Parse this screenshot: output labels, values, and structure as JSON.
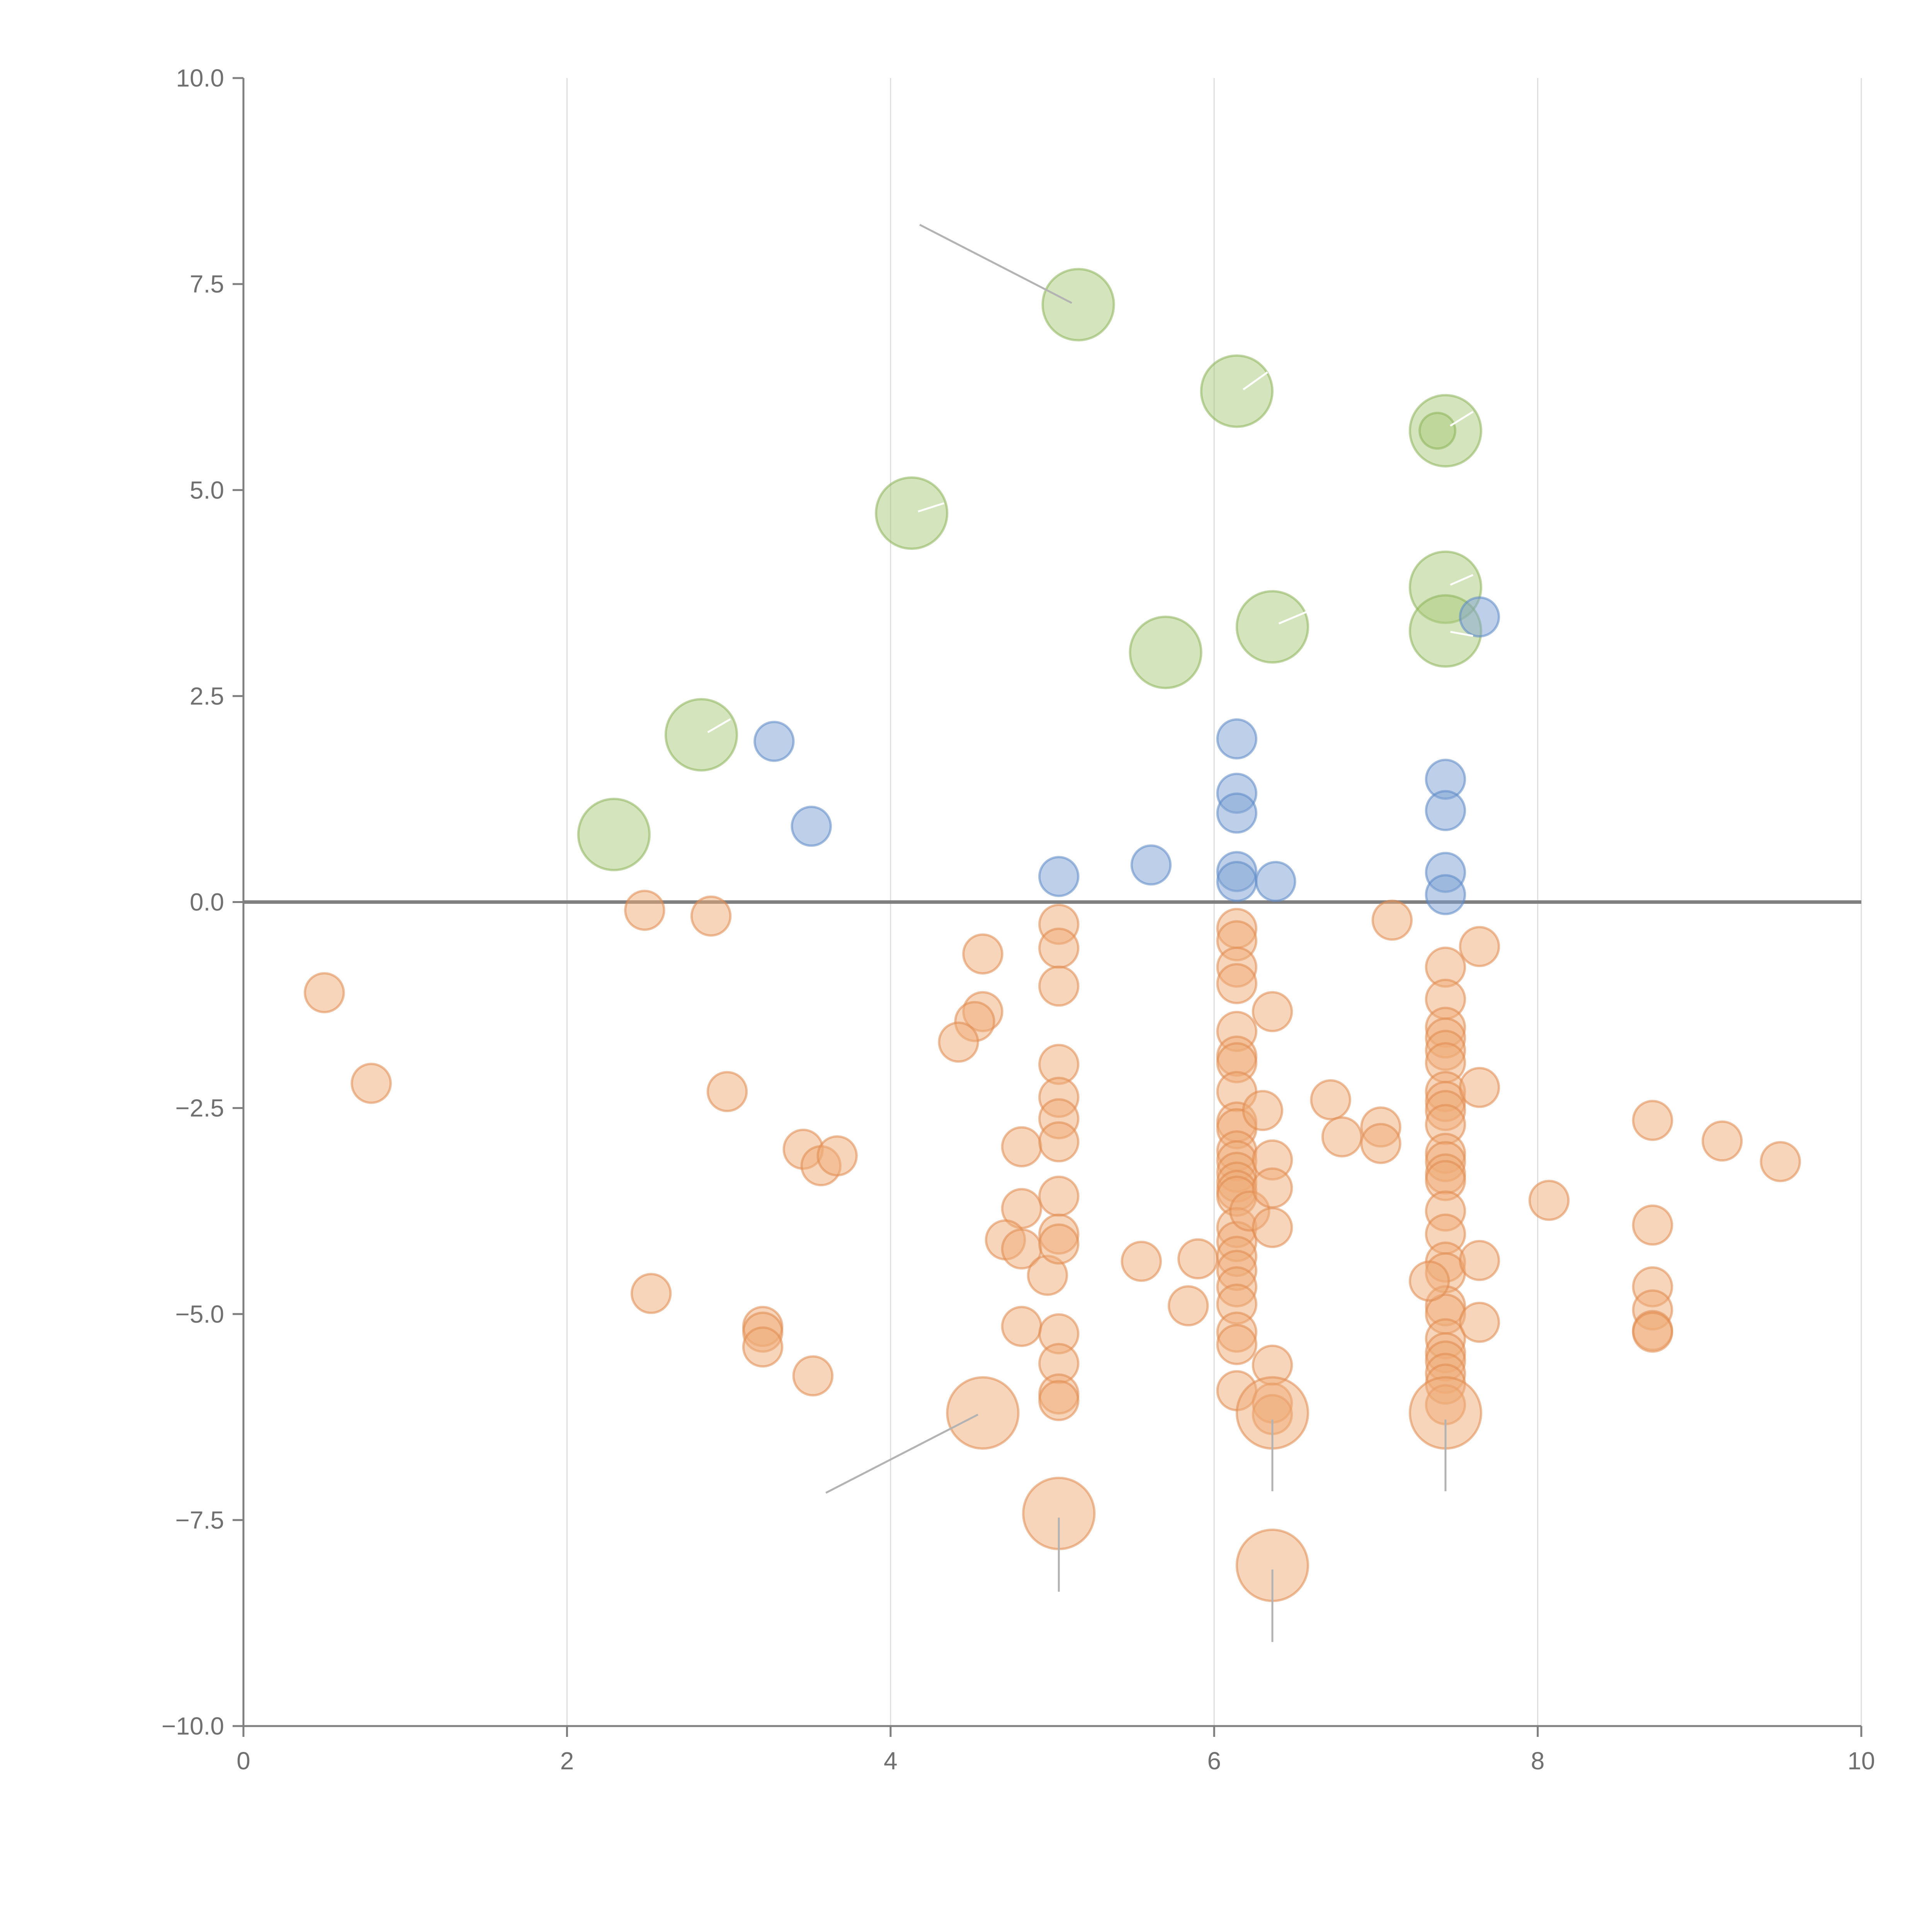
{
  "chart_data": {
    "type": "scatter",
    "title": "",
    "xlabel": "",
    "ylabel": "",
    "xlim": [
      0,
      10
    ],
    "ylim": [
      -10,
      10
    ],
    "grid": "vertical",
    "x_ticks": [
      0,
      2,
      4,
      6,
      8,
      10
    ],
    "x_tick_labels": [
      "0",
      "2",
      "4",
      "6",
      "8",
      "10"
    ],
    "y_ticks": [
      10,
      7.5,
      5,
      2.5,
      0,
      -2.5,
      -5,
      -7.5,
      -10
    ],
    "y_tick_labels": [
      "10.0",
      "7.5",
      "5.0",
      "2.5",
      "0.0",
      "−2.5",
      "−5.0",
      "−7.5",
      "−10.0"
    ],
    "colors": {
      "axis": "#7f7f7f",
      "grid": "#dddddd",
      "zero_line": "#7f7f7f",
      "leader": "#b3b3b3"
    },
    "series": [
      {
        "name": "green",
        "color": "#a9c97a",
        "stroke": "#8db35a",
        "r": 0.22,
        "points": [
          [
            5.16,
            7.25
          ],
          [
            6.14,
            6.2
          ],
          [
            7.43,
            5.72
          ],
          [
            4.13,
            4.72
          ],
          [
            7.43,
            3.82
          ],
          [
            6.36,
            3.34
          ],
          [
            7.43,
            3.29
          ],
          [
            5.7,
            3.03
          ],
          [
            2.83,
            2.03
          ],
          [
            2.29,
            0.82
          ]
        ]
      },
      {
        "name": "green-small",
        "color": "#a9c97a",
        "stroke": "#8db35a",
        "r": 0.11,
        "points": [
          [
            7.38,
            5.72
          ]
        ]
      },
      {
        "name": "blue",
        "color": "#7ea2d4",
        "stroke": "#5b88c6",
        "r": 0.12,
        "points": [
          [
            3.28,
            1.95
          ],
          [
            3.51,
            0.92
          ],
          [
            5.04,
            0.31
          ],
          [
            5.61,
            0.45
          ],
          [
            6.14,
            1.98
          ],
          [
            6.14,
            1.32
          ],
          [
            6.14,
            1.08
          ],
          [
            6.14,
            0.37
          ],
          [
            6.14,
            0.25
          ],
          [
            6.38,
            0.25
          ],
          [
            7.43,
            1.49
          ],
          [
            7.43,
            1.11
          ],
          [
            7.43,
            0.36
          ],
          [
            7.43,
            0.09
          ],
          [
            7.64,
            3.46
          ]
        ]
      },
      {
        "name": "orange",
        "color": "#f0ac78",
        "stroke": "#e08a4f",
        "r": 0.12,
        "points": [
          [
            0.5,
            -1.1
          ],
          [
            0.79,
            -2.2
          ],
          [
            2.48,
            -0.1
          ],
          [
            2.89,
            -0.17
          ],
          [
            2.99,
            -2.3
          ],
          [
            2.52,
            -4.75
          ],
          [
            3.46,
            -3.0
          ],
          [
            3.57,
            -3.2
          ],
          [
            3.67,
            -3.08
          ],
          [
            3.21,
            -5.15
          ],
          [
            3.21,
            -5.22
          ],
          [
            3.21,
            -5.4
          ],
          [
            3.52,
            -5.75
          ],
          [
            4.57,
            -0.63
          ],
          [
            4.57,
            -1.33
          ],
          [
            4.52,
            -1.45
          ],
          [
            4.42,
            -1.7
          ],
          [
            4.81,
            -2.97
          ],
          [
            4.81,
            -3.72
          ],
          [
            4.71,
            -4.1
          ],
          [
            4.81,
            -4.21
          ],
          [
            4.81,
            -5.15
          ],
          [
            4.97,
            -4.53
          ],
          [
            5.04,
            -0.27
          ],
          [
            5.04,
            -0.56
          ],
          [
            5.04,
            -1.02
          ],
          [
            5.04,
            -1.97
          ],
          [
            5.04,
            -2.37
          ],
          [
            5.04,
            -2.63
          ],
          [
            5.04,
            -2.91
          ],
          [
            5.04,
            -3.57
          ],
          [
            5.04,
            -4.03
          ],
          [
            5.04,
            -4.15
          ],
          [
            5.04,
            -5.24
          ],
          [
            5.04,
            -5.6
          ],
          [
            5.04,
            -5.97
          ],
          [
            5.04,
            -6.05
          ],
          [
            5.55,
            -4.36
          ],
          [
            5.84,
            -4.9
          ],
          [
            5.9,
            -4.33
          ],
          [
            6.14,
            -0.32
          ],
          [
            6.14,
            -0.47
          ],
          [
            6.14,
            -0.79
          ],
          [
            6.14,
            -0.99
          ],
          [
            6.14,
            -1.57
          ],
          [
            6.14,
            -1.87
          ],
          [
            6.14,
            -1.95
          ],
          [
            6.14,
            -2.3
          ],
          [
            6.14,
            -2.67
          ],
          [
            6.14,
            -2.75
          ],
          [
            6.14,
            -3.02
          ],
          [
            6.14,
            -3.14
          ],
          [
            6.14,
            -3.28
          ],
          [
            6.14,
            -3.4
          ],
          [
            6.14,
            -3.5
          ],
          [
            6.14,
            -3.57
          ],
          [
            6.14,
            -3.95
          ],
          [
            6.14,
            -4.12
          ],
          [
            6.14,
            -4.3
          ],
          [
            6.14,
            -4.47
          ],
          [
            6.14,
            -4.67
          ],
          [
            6.14,
            -4.88
          ],
          [
            6.14,
            -5.22
          ],
          [
            6.14,
            -5.37
          ],
          [
            6.14,
            -5.93
          ],
          [
            6.22,
            -3.75
          ],
          [
            6.3,
            -2.53
          ],
          [
            6.36,
            -1.33
          ],
          [
            6.36,
            -3.13
          ],
          [
            6.36,
            -3.47
          ],
          [
            6.36,
            -3.95
          ],
          [
            6.36,
            -5.62
          ],
          [
            6.36,
            -6.08
          ],
          [
            6.36,
            -6.22
          ],
          [
            6.72,
            -2.4
          ],
          [
            6.79,
            -2.85
          ],
          [
            7.03,
            -2.73
          ],
          [
            7.03,
            -2.93
          ],
          [
            7.1,
            -0.22
          ],
          [
            7.43,
            -0.79
          ],
          [
            7.43,
            -1.18
          ],
          [
            7.43,
            -1.52
          ],
          [
            7.43,
            -1.65
          ],
          [
            7.43,
            -1.8
          ],
          [
            7.43,
            -1.95
          ],
          [
            7.43,
            -2.3
          ],
          [
            7.43,
            -2.42
          ],
          [
            7.43,
            -2.53
          ],
          [
            7.43,
            -2.7
          ],
          [
            7.43,
            -3.05
          ],
          [
            7.43,
            -3.15
          ],
          [
            7.43,
            -3.3
          ],
          [
            7.43,
            -3.38
          ],
          [
            7.43,
            -3.75
          ],
          [
            7.43,
            -4.03
          ],
          [
            7.43,
            -4.37
          ],
          [
            7.43,
            -4.5
          ],
          [
            7.43,
            -4.9
          ],
          [
            7.43,
            -5.0
          ],
          [
            7.43,
            -5.3
          ],
          [
            7.43,
            -5.47
          ],
          [
            7.43,
            -5.57
          ],
          [
            7.43,
            -5.72
          ],
          [
            7.43,
            -5.85
          ],
          [
            7.43,
            -6.1
          ],
          [
            7.33,
            -4.6
          ],
          [
            7.64,
            -0.54
          ],
          [
            7.64,
            -2.25
          ],
          [
            7.64,
            -4.35
          ],
          [
            7.64,
            -5.1
          ],
          [
            8.07,
            -3.62
          ],
          [
            8.71,
            -2.65
          ],
          [
            8.71,
            -3.92
          ],
          [
            8.71,
            -4.67
          ],
          [
            8.71,
            -4.95
          ],
          [
            8.71,
            -5.2
          ],
          [
            8.71,
            -5.22
          ],
          [
            9.14,
            -2.9
          ],
          [
            9.5,
            -3.15
          ]
        ]
      },
      {
        "name": "orange-large",
        "color": "#f0ac78",
        "stroke": "#e08a4f",
        "r": 0.22,
        "points": [
          [
            4.57,
            -6.2
          ],
          [
            5.04,
            -7.42
          ],
          [
            6.36,
            -6.2
          ],
          [
            7.43,
            -6.2
          ],
          [
            6.36,
            -8.05
          ]
        ]
      }
    ],
    "leader_lines": [
      {
        "from": [
          4.18,
          8.22
        ],
        "to": [
          5.12,
          7.27
        ],
        "color": "#b3b3b3"
      },
      {
        "from": [
          6.18,
          6.22
        ],
        "to": [
          6.33,
          6.43
        ],
        "color": "#ffffff"
      },
      {
        "from": [
          7.46,
          5.78
        ],
        "to": [
          7.6,
          5.95
        ],
        "color": "#ffffff"
      },
      {
        "from": [
          4.17,
          4.74
        ],
        "to": [
          4.33,
          4.84
        ],
        "color": "#ffffff"
      },
      {
        "from": [
          7.46,
          3.85
        ],
        "to": [
          7.6,
          3.97
        ],
        "color": "#ffffff"
      },
      {
        "from": [
          6.4,
          3.38
        ],
        "to": [
          6.57,
          3.52
        ],
        "color": "#ffffff"
      },
      {
        "from": [
          7.46,
          3.28
        ],
        "to": [
          7.6,
          3.23
        ],
        "color": "#ffffff"
      },
      {
        "from": [
          2.87,
          2.06
        ],
        "to": [
          3.01,
          2.22
        ],
        "color": "#ffffff"
      },
      {
        "from": [
          4.54,
          -6.22
        ],
        "to": [
          3.6,
          -7.17
        ],
        "color": "#b3b3b3"
      },
      {
        "from": [
          6.36,
          -6.28
        ],
        "to": [
          6.36,
          -7.15
        ],
        "color": "#b3b3b3"
      },
      {
        "from": [
          7.43,
          -6.28
        ],
        "to": [
          7.43,
          -7.15
        ],
        "color": "#b3b3b3"
      },
      {
        "from": [
          5.04,
          -7.47
        ],
        "to": [
          5.04,
          -8.37
        ],
        "color": "#b3b3b3"
      },
      {
        "from": [
          6.36,
          -8.1
        ],
        "to": [
          6.36,
          -8.98
        ],
        "color": "#b3b3b3"
      }
    ]
  }
}
